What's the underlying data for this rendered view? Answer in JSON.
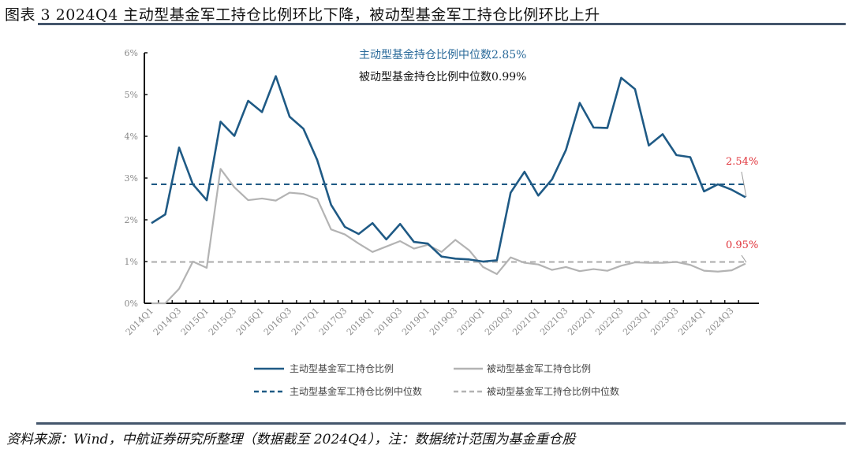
{
  "title": "图表 3 2024Q4 主动型基金军工持仓比例环比下降，被动型基金军工持仓比例环比上升",
  "footer": "资料来源：Wind，中航证券研究所整理（数据截至 2024Q4），注：数据统计范围为基金重仓股",
  "chart_data": {
    "type": "line",
    "x": [
      "2014Q1",
      "2014Q2",
      "2014Q3",
      "2014Q4",
      "2015Q1",
      "2015Q2",
      "2015Q3",
      "2015Q4",
      "2016Q1",
      "2016Q2",
      "2016Q3",
      "2016Q4",
      "2017Q1",
      "2017Q2",
      "2017Q3",
      "2017Q4",
      "2018Q1",
      "2018Q2",
      "2018Q3",
      "2018Q4",
      "2019Q1",
      "2019Q2",
      "2019Q3",
      "2019Q4",
      "2020Q1",
      "2020Q2",
      "2020Q3",
      "2020Q4",
      "2021Q1",
      "2021Q2",
      "2021Q3",
      "2021Q4",
      "2022Q1",
      "2022Q2",
      "2022Q3",
      "2022Q4",
      "2023Q1",
      "2023Q2",
      "2023Q3",
      "2023Q4",
      "2024Q1",
      "2024Q2",
      "2024Q3",
      "2024Q4"
    ],
    "x_tick_labels": [
      "2014Q1",
      "2014Q3",
      "2015Q1",
      "2015Q3",
      "2016Q1",
      "2016Q3",
      "2017Q1",
      "2017Q3",
      "2018Q1",
      "2018Q3",
      "2019Q1",
      "2019Q3",
      "2020Q1",
      "2020Q3",
      "2021Q1",
      "2021Q3",
      "2022Q1",
      "2022Q3",
      "2023Q1",
      "2023Q3",
      "2024Q1",
      "2024Q3"
    ],
    "y_ticks": [
      "0%",
      "1%",
      "2%",
      "3%",
      "4%",
      "5%",
      "6%"
    ],
    "ylim": [
      0,
      6
    ],
    "y_unit": "%",
    "grid": false,
    "legend_position": "bottom",
    "series": [
      {
        "name": "主动型基金军工持仓比例",
        "color": "#1f5a85",
        "style": "solid",
        "values": [
          1.92,
          2.13,
          3.73,
          2.85,
          2.47,
          4.35,
          4.01,
          4.85,
          4.58,
          5.44,
          4.47,
          4.18,
          3.43,
          2.36,
          1.83,
          1.66,
          1.92,
          1.53,
          1.9,
          1.47,
          1.43,
          1.12,
          1.07,
          1.05,
          1.0,
          1.03,
          2.65,
          3.15,
          2.58,
          2.97,
          3.67,
          4.8,
          4.21,
          4.2,
          5.4,
          5.13,
          3.78,
          4.05,
          3.55,
          3.5,
          2.68,
          2.85,
          2.72,
          2.54
        ]
      },
      {
        "name": "被动型基金军工持仓比例",
        "color": "#b3b3b3",
        "style": "solid",
        "values": [
          0.0,
          0.0,
          0.35,
          1.0,
          0.85,
          3.22,
          2.78,
          2.47,
          2.51,
          2.46,
          2.65,
          2.62,
          2.5,
          1.77,
          1.65,
          1.43,
          1.23,
          1.36,
          1.49,
          1.31,
          1.4,
          1.23,
          1.52,
          1.27,
          0.87,
          0.7,
          1.1,
          0.97,
          0.93,
          0.8,
          0.87,
          0.77,
          0.82,
          0.78,
          0.9,
          0.98,
          0.97,
          0.97,
          0.99,
          0.92,
          0.78,
          0.76,
          0.79,
          0.95
        ]
      },
      {
        "name": "主动型基金军工持仓比例中位数",
        "color": "#1f5a85",
        "style": "dashed",
        "constant": 2.85
      },
      {
        "name": "被动型基金军工持仓比例中位数",
        "color": "#b3b3b3",
        "style": "dashed",
        "constant": 0.99
      }
    ],
    "annotations": [
      {
        "text": "主动型基金持仓比例中位数2.85%",
        "color": "#2a6a9a"
      },
      {
        "text": "被动型基金持仓比例中位数0.99%",
        "color": "#111111"
      },
      {
        "text": "2.54%",
        "color": "#e0353c"
      },
      {
        "text": "0.95%",
        "color": "#e0353c"
      }
    ]
  }
}
